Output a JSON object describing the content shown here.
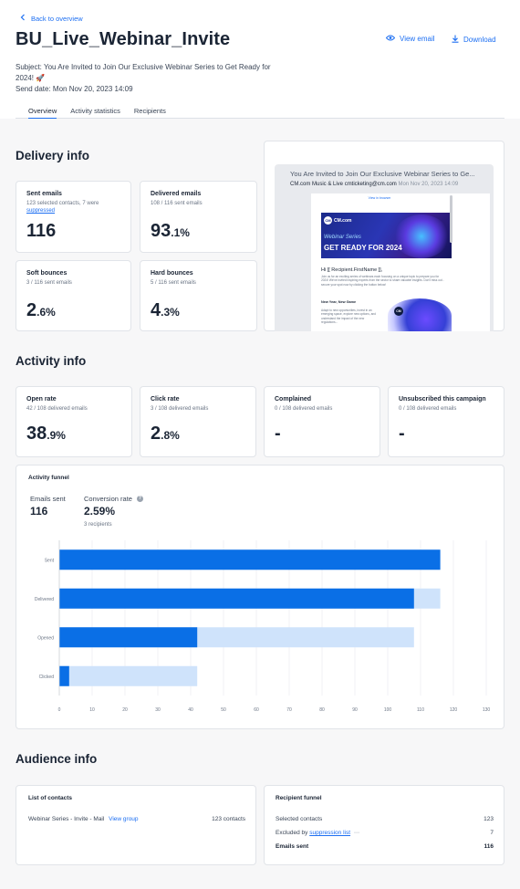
{
  "header": {
    "back_label": "Back to overview",
    "title": "BU_Live_Webinar_Invite",
    "view_email_label": "View email",
    "download_label": "Download",
    "subject": "Subject: You Are Invited to Join Our Exclusive Webinar Series to Get Ready for 2024! 🚀",
    "send_date": "Send date: Mon Nov 20, 2023 14:09"
  },
  "tabs": [
    {
      "label": "Overview",
      "active": true
    },
    {
      "label": "Activity statistics",
      "active": false
    },
    {
      "label": "Recipients",
      "active": false
    }
  ],
  "delivery": {
    "title": "Delivery info",
    "sent": {
      "label": "Sent emails",
      "sub": "123 selected contacts, 7 were",
      "sub_link": "suppressed",
      "value": "116"
    },
    "delivered": {
      "label": "Delivered emails",
      "sub": "108 / 116 sent emails",
      "value_int": "93",
      "value_dec": ".1%"
    },
    "soft": {
      "label": "Soft bounces",
      "sub": "3 / 116 sent emails",
      "value_int": "2",
      "value_dec": ".6%"
    },
    "hard": {
      "label": "Hard bounces",
      "sub": "5 / 116 sent emails",
      "value_int": "4",
      "value_dec": ".3%"
    }
  },
  "preview": {
    "subject": "You Are Invited to Join Our Exclusive Webinar Series to Ge...",
    "from_name": "CM.com Music & Live",
    "from_email": "cmticketing@cm.com",
    "date": "Mon Nov 20, 2023 14:09",
    "view_browser": "View in browser",
    "logo_text": "CM.com",
    "banner_small": "Webinar Series",
    "banner_big": "GET READY FOR 2024",
    "greeting": "Hi [[ Recipient.FirstName ]],",
    "body1": "Join us for an exciting series of webinars each focusing on a unique topic to prepare you for 2024! We've invited inspiring experts from the sector to share valuable insights. Don't miss out - secure your spot now by clicking the button below!",
    "heading2": "New Year, New Game",
    "body2": "Adapt to new opportunities, invest in an emerging space, explore new options, and understand the impact of the new regulations..."
  },
  "activity": {
    "title": "Activity info",
    "open": {
      "label": "Open rate",
      "sub": "42 / 108 delivered emails",
      "value_int": "38",
      "value_dec": ".9%"
    },
    "click": {
      "label": "Click rate",
      "sub": "3 / 108 delivered emails",
      "value_int": "2",
      "value_dec": ".8%"
    },
    "complained": {
      "label": "Complained",
      "sub": "0 / 108 delivered emails",
      "value": "-"
    },
    "unsubscribed": {
      "label": "Unsubscribed this campaign",
      "sub": "0 / 108 delivered emails",
      "value": "-"
    }
  },
  "funnel": {
    "title": "Activity funnel",
    "emails_sent_label": "Emails sent",
    "emails_sent_value": "116",
    "conversion_label": "Conversion rate",
    "conversion_value": "2.59%",
    "conversion_sub": "3 recipients"
  },
  "chart_data": {
    "type": "bar",
    "orientation": "horizontal",
    "categories": [
      "Sent",
      "Delivered",
      "Opened",
      "Clicked"
    ],
    "series": [
      {
        "values": [
          116,
          108,
          42,
          3
        ],
        "color": "#0a6fe6"
      },
      {
        "values": [
          116,
          116,
          108,
          42
        ],
        "color": "#cfe3fb"
      }
    ],
    "xlim": [
      0,
      130
    ],
    "xticks": [
      "0",
      "10",
      "20",
      "30",
      "40",
      "50",
      "60",
      "70",
      "80",
      "90",
      "100",
      "110",
      "120",
      "130"
    ],
    "grid": true
  },
  "audience": {
    "title": "Audience info",
    "contacts_title": "List of contacts",
    "contact_name": "Webinar Series - Invite - Mail",
    "view_group": "View group",
    "contact_count": "123 contacts",
    "funnel_title": "Recipient funnel",
    "selected_label": "Selected contacts",
    "selected_value": "123",
    "excluded_prefix": "Excluded by",
    "excluded_link": "suppression list",
    "excluded_value": "7",
    "sent_label": "Emails sent",
    "sent_value": "116"
  },
  "colors": {
    "accent": "#1d6ff2",
    "bar_dark": "#0a6fe6",
    "bar_light": "#cfe3fb"
  }
}
